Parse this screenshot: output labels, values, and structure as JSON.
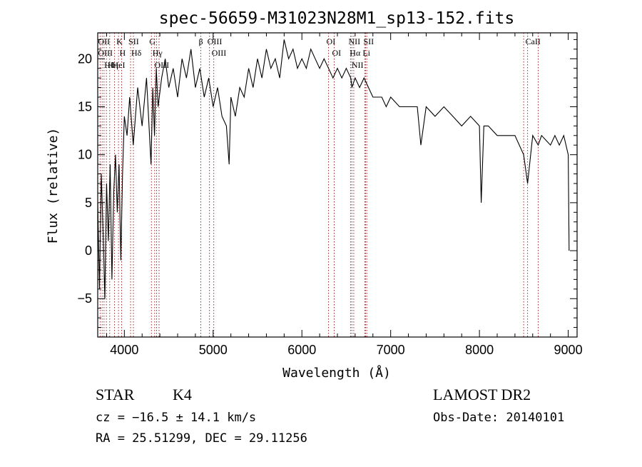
{
  "chart_data": {
    "type": "line",
    "title": "spec-56659-M31023N28M1_sp13-152.fits",
    "xlabel": "Wavelength (Å)",
    "ylabel": "Flux (relative)",
    "xlim": [
      3700,
      9100
    ],
    "ylim": [
      -9,
      22.7
    ],
    "xticks": [
      4000,
      5000,
      6000,
      7000,
      8000,
      9000
    ],
    "yticks": [
      -5,
      0,
      5,
      10,
      15,
      20
    ],
    "spectrum": {
      "x": [
        3700,
        3720,
        3740,
        3760,
        3780,
        3800,
        3820,
        3840,
        3860,
        3880,
        3900,
        3920,
        3940,
        3960,
        3980,
        4000,
        4030,
        4060,
        4100,
        4150,
        4200,
        4250,
        4300,
        4320,
        4340,
        4360,
        4380,
        4420,
        4460,
        4500,
        4550,
        4600,
        4650,
        4700,
        4750,
        4800,
        4850,
        4900,
        4950,
        5000,
        5050,
        5100,
        5150,
        5180,
        5200,
        5250,
        5300,
        5350,
        5400,
        5450,
        5500,
        5550,
        5600,
        5650,
        5700,
        5750,
        5800,
        5850,
        5900,
        5950,
        6000,
        6050,
        6100,
        6150,
        6200,
        6250,
        6300,
        6350,
        6400,
        6450,
        6500,
        6550,
        6563,
        6600,
        6650,
        6700,
        6750,
        6800,
        6850,
        6900,
        6950,
        7000,
        7100,
        7200,
        7300,
        7340,
        7400,
        7500,
        7600,
        7700,
        7800,
        7900,
        8000,
        8020,
        8050,
        8100,
        8200,
        8300,
        8400,
        8498,
        8542,
        8600,
        8662,
        8700,
        8800,
        8850,
        8900,
        8950,
        9000,
        9010
      ],
      "y": [
        5,
        -4,
        8,
        2,
        -5,
        7,
        1,
        9,
        -3,
        6,
        10,
        4,
        9,
        -1,
        8,
        14,
        12,
        16,
        11,
        17,
        13,
        18,
        9,
        17,
        12,
        19,
        15,
        18,
        20,
        17,
        19,
        16,
        20,
        18,
        21,
        17,
        19,
        16,
        18,
        15,
        17,
        14,
        13,
        9,
        16,
        14,
        17,
        16,
        19,
        17,
        20,
        18,
        21,
        19,
        20,
        18,
        22,
        20,
        21,
        19,
        20,
        19,
        21,
        20,
        19,
        20,
        19,
        18,
        19,
        18,
        19,
        18,
        17,
        18,
        17,
        18,
        17,
        16,
        16,
        16,
        15,
        16,
        15,
        15,
        15,
        11,
        15,
        14,
        15,
        14,
        13,
        14,
        13,
        5,
        13,
        13,
        12,
        12,
        12,
        10,
        7,
        12,
        11,
        12,
        11,
        12,
        11,
        12,
        10,
        0
      ]
    },
    "spectral_lines": [
      {
        "label": "Hθ",
        "wl": 3798
      },
      {
        "label": "OII",
        "wl": 3727
      },
      {
        "label": "OIII",
        "wl": 3727
      },
      {
        "label": "K",
        "wl": 3934
      },
      {
        "label": "HeI",
        "wl": 3889
      },
      {
        "label": "Hη",
        "wl": 3835
      },
      {
        "label": "Hδ",
        "wl": 4102
      },
      {
        "label": "SII",
        "wl": 4070
      },
      {
        "label": "H",
        "wl": 3969
      },
      {
        "label": "OIII",
        "wl": 4363
      },
      {
        "label": "Hγ",
        "wl": 4341
      },
      {
        "label": "G",
        "wl": 4305
      },
      {
        "label": "OIII",
        "wl": 5007
      },
      {
        "label": "OIII",
        "wl": 4959
      },
      {
        "label": "β",
        "wl": 4861
      },
      {
        "label": "OI",
        "wl": 6300
      },
      {
        "label": "OI",
        "wl": 6364
      },
      {
        "label": "NII",
        "wl": 6548
      },
      {
        "label": "Li",
        "wl": 6708
      },
      {
        "label": "NII",
        "wl": 6584
      },
      {
        "label": "Hα",
        "wl": 6563
      },
      {
        "label": "SII",
        "wl": 6717
      },
      {
        "label": "CaII",
        "wl": 8542
      }
    ],
    "extra_line_markers": [
      3750,
      3771,
      4391,
      6731,
      8498,
      8662
    ],
    "colors": {
      "spectrum": "#000000",
      "line_marker": "#a0272d",
      "axes": "#000000"
    }
  },
  "info": {
    "class": "STAR",
    "subclass": "K4",
    "survey": "LAMOST DR2",
    "redshift": "cz = −16.5 ± 14.1 km/s",
    "obs_date": "Obs-Date: 20140101",
    "coords": "RA =  25.51299, DEC =  29.11256"
  }
}
